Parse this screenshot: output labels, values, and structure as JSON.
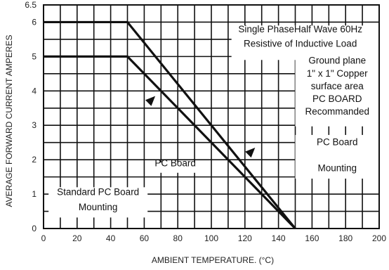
{
  "chart_data": {
    "type": "line",
    "xlabel": "AMBIENT TEMPERATURE. (°C)",
    "ylabel": "AVERAGE FORWARD CURRENT AMPERES",
    "xlim": [
      0,
      200
    ],
    "ylim": [
      0,
      6.5
    ],
    "x_ticks": [
      "0",
      "20",
      "40",
      "60",
      "80",
      "100",
      "120",
      "140",
      "160",
      "180",
      "200"
    ],
    "y_ticks": [
      "0",
      "1",
      "2",
      "3",
      "4",
      "5",
      "6",
      "6.5"
    ],
    "grid": true,
    "series": [
      {
        "name": "PC Board",
        "x": [
          0,
          50,
          150
        ],
        "y": [
          5,
          5,
          0
        ]
      },
      {
        "name": "Ground plane 1\" x 1\" Copper surface area PC BOARD Recommanded",
        "x": [
          0,
          50,
          150
        ],
        "y": [
          6,
          6,
          0
        ]
      }
    ],
    "annotations": [
      {
        "id": "title1",
        "text": "Single PhaseHalf Wave 60Hz"
      },
      {
        "id": "title2",
        "text": "Resistive of Inductive Load"
      },
      {
        "id": "gp1",
        "text": "Ground plane"
      },
      {
        "id": "gp2",
        "text": "1\" x 1\" Copper"
      },
      {
        "id": "gp3",
        "text": "surface area"
      },
      {
        "id": "gp4",
        "text": "PC BOARD"
      },
      {
        "id": "gp5",
        "text": "Recommanded"
      },
      {
        "id": "pcb",
        "text": "PC Board"
      },
      {
        "id": "mount",
        "text": "Mounting"
      },
      {
        "id": "pcb_mid",
        "text": "PC Board"
      },
      {
        "id": "std1",
        "text": "Standard PC Board"
      },
      {
        "id": "std2",
        "text": "Mounting"
      }
    ]
  }
}
